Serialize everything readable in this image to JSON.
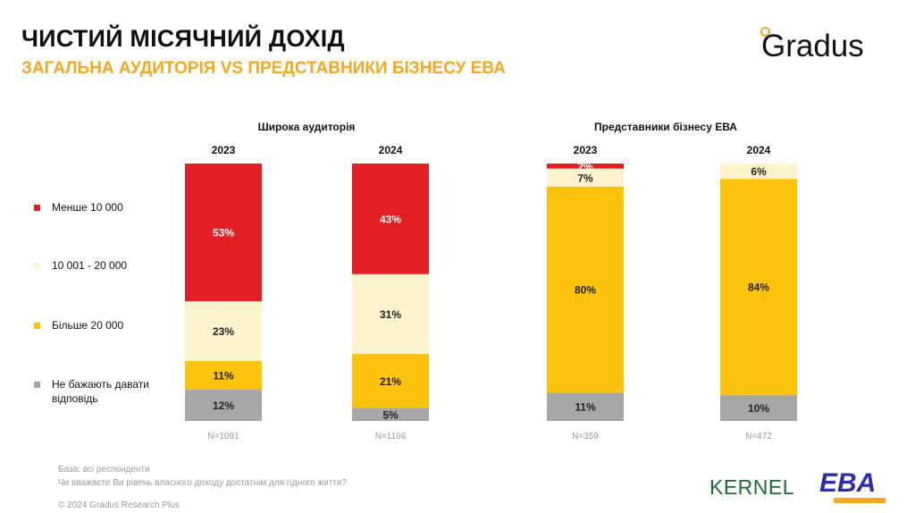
{
  "header": {
    "title": "ЧИСТИЙ МІСЯЧНИЙ ДОХІД",
    "subtitle": "ЗАГАЛЬНА АУДИТОРІЯ VS ПРЕДСТАВНИКИ БІЗНЕСУ ЕВА",
    "logo": "Gradus"
  },
  "chart_data": {
    "type": "bar",
    "stacked": true,
    "normalized": true,
    "legend_position": "left",
    "groups": [
      {
        "title": "Широка аудиторія",
        "bars": [
          {
            "label": "2023",
            "n": "N=1091"
          },
          {
            "label": "2024",
            "n": "N=1166"
          }
        ]
      },
      {
        "title": "Представники бізнесу ЕВА",
        "bars": [
          {
            "label": "2023",
            "n": "N=359"
          },
          {
            "label": "2024",
            "n": "N=472"
          }
        ]
      }
    ],
    "series": [
      {
        "name": "Менше 10 000",
        "color": "#e31e24",
        "values": [
          53,
          43,
          2,
          0
        ]
      },
      {
        "name": "10 001 - 20 000",
        "color": "#fdf3cc",
        "values": [
          23,
          31,
          7,
          6
        ]
      },
      {
        "name": "Більше 20 000",
        "color": "#fcc30b",
        "values": [
          11,
          21,
          80,
          84
        ]
      },
      {
        "name": "Не бажають давати відповідь",
        "color": "#a6a6a6",
        "values": [
          12,
          5,
          11,
          10
        ]
      }
    ],
    "value_suffix": "%"
  },
  "footer": {
    "base": "База: всі респонденти",
    "question": "Чи вважаєте Ви рівень власного доходу достатнім для гідного життя?",
    "copyright": "© 2024 Gradus Research Plus",
    "partner1": "KERNEL",
    "partner2": "EBA"
  }
}
